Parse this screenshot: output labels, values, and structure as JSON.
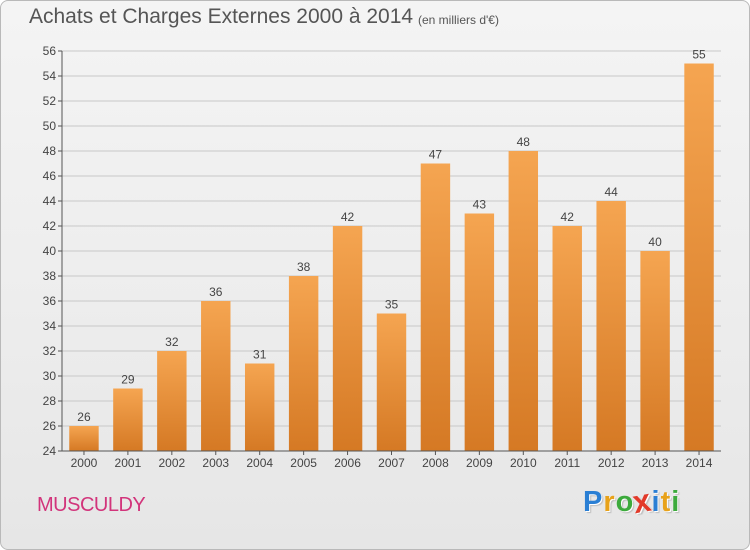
{
  "header": {
    "title": "Achats et Charges Externes 2000 à 2014",
    "unit": "(en milliers d'€)"
  },
  "commune": "MUSCULDY",
  "logo": {
    "letters": [
      "P",
      "r",
      "o",
      "x",
      "i",
      "t",
      "i"
    ],
    "colors": [
      "#2a7fd4",
      "#e8a21a",
      "#3caa3c",
      "#e23a2a",
      "#2a7fd4",
      "#e8a21a",
      "#3caa3c"
    ]
  },
  "colors": {
    "bar_light": "#f5a551",
    "bar_dark": "#d57924",
    "grid": "#c8c8c8",
    "axis": "#555555",
    "label": "#444444",
    "commune": "#d2347b"
  },
  "chart_data": {
    "type": "bar",
    "categories": [
      "2000",
      "2001",
      "2002",
      "2003",
      "2004",
      "2005",
      "2006",
      "2007",
      "2008",
      "2009",
      "2010",
      "2011",
      "2012",
      "2013",
      "2014"
    ],
    "values": [
      26,
      29,
      32,
      36,
      31,
      38,
      42,
      35,
      47,
      43,
      48,
      42,
      44,
      40,
      55
    ],
    "title": "Achats et Charges Externes 2000 à 2014",
    "ylim": [
      24,
      56
    ],
    "yticks": [
      24,
      26,
      28,
      30,
      32,
      34,
      36,
      38,
      40,
      42,
      44,
      46,
      48,
      50,
      52,
      54,
      56
    ],
    "grid": true,
    "data_labels": true
  }
}
